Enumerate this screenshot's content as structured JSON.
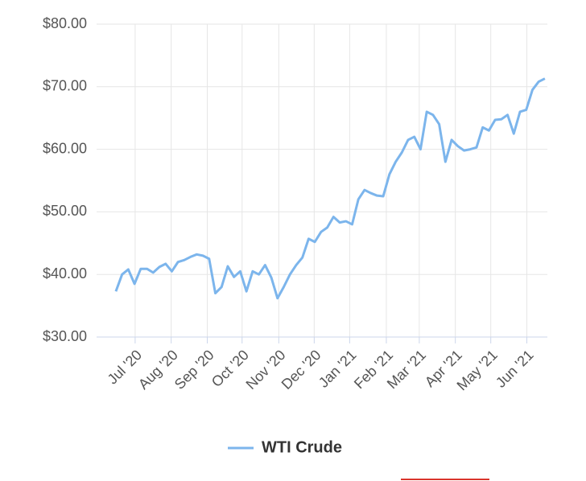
{
  "chart_data": {
    "type": "line",
    "series": [
      {
        "name": "WTI Crude",
        "color": "#7cb5ec",
        "values": [
          37.3,
          40.0,
          40.8,
          38.5,
          40.9,
          40.9,
          40.3,
          41.2,
          41.7,
          40.5,
          42.0,
          42.3,
          42.8,
          43.2,
          43.0,
          42.5,
          37.0,
          38.0,
          41.3,
          39.6,
          40.5,
          37.3,
          40.5,
          40.0,
          41.5,
          39.5,
          36.2,
          38.0,
          40.0,
          41.5,
          42.7,
          45.7,
          45.2,
          46.8,
          47.5,
          49.2,
          48.3,
          48.5,
          48.0,
          52.0,
          53.5,
          53.0,
          52.6,
          52.5,
          56.0,
          58.0,
          59.5,
          61.5,
          62.0,
          60.0,
          66.0,
          65.5,
          64.0,
          58.0,
          61.5,
          60.5,
          59.8,
          60.0,
          60.3,
          63.5,
          63.0,
          64.7,
          64.8,
          65.5,
          62.5,
          66.0,
          66.3,
          69.5,
          70.8,
          71.3
        ]
      }
    ],
    "xlim": [
      -3.1,
      69.4
    ],
    "xticks": [
      {
        "value": 3.1,
        "label": "Jul '20"
      },
      {
        "value": 8.9,
        "label": "Aug '20"
      },
      {
        "value": 14.7,
        "label": "Sep '20"
      },
      {
        "value": 20.3,
        "label": "Oct '20"
      },
      {
        "value": 26.2,
        "label": "Nov '20"
      },
      {
        "value": 31.9,
        "label": "Dec '20"
      },
      {
        "value": 37.6,
        "label": "Jan '21"
      },
      {
        "value": 43.5,
        "label": "Feb '21"
      },
      {
        "value": 48.8,
        "label": "Mar '21"
      },
      {
        "value": 54.6,
        "label": "Apr '21"
      },
      {
        "value": 60.3,
        "label": "May '21"
      },
      {
        "value": 66.1,
        "label": "Jun '21"
      }
    ],
    "ylim": [
      30,
      80
    ],
    "yticks": [
      {
        "value": 30,
        "label": "$30.00"
      },
      {
        "value": 40,
        "label": "$40.00"
      },
      {
        "value": 50,
        "label": "$50.00"
      },
      {
        "value": 60,
        "label": "$60.00"
      },
      {
        "value": 70,
        "label": "$70.00"
      },
      {
        "value": 80,
        "label": "$80.00"
      }
    ],
    "grid": true
  }
}
